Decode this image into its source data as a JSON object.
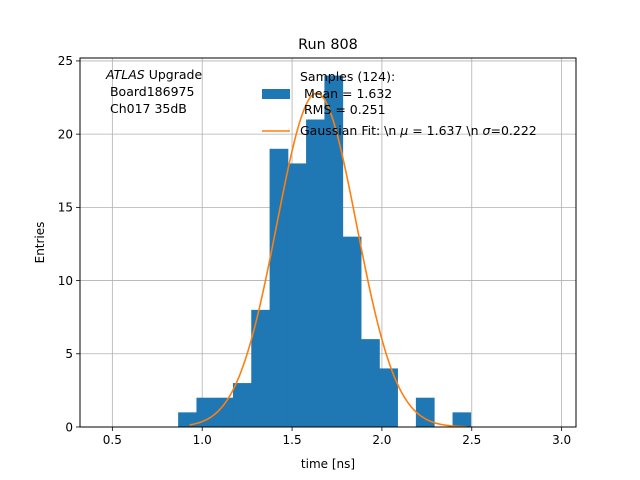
{
  "chart_data": {
    "type": "bar",
    "title": "Run 808",
    "xlabel": "time [ns]",
    "ylabel": "Entries",
    "xlim": [
      0.32,
      3.08
    ],
    "ylim": [
      0,
      25.2
    ],
    "grid": true,
    "xticks": [
      0.5,
      1.0,
      1.5,
      2.0,
      2.5,
      3.0
    ],
    "xtick_labels": [
      "0.5",
      "1.0",
      "1.5",
      "2.0",
      "2.5",
      "3.0"
    ],
    "yticks": [
      0,
      5,
      10,
      15,
      20,
      25
    ],
    "ytick_labels": [
      "0",
      "5",
      "10",
      "15",
      "20",
      "25"
    ],
    "annotation": {
      "experiment": "ATLAS",
      "experiment_suffix": " Upgrade",
      "board": " Board186975",
      "channel": " Ch017 35dB"
    },
    "histogram": {
      "name_lines": [
        "Samples (124):",
        " Mean = 1.632",
        " RMS = 0.251"
      ],
      "color": "#1f77b4",
      "bin_edges": [
        0.866,
        0.968,
        1.07,
        1.171,
        1.273,
        1.375,
        1.477,
        1.578,
        1.68,
        1.782,
        1.884,
        1.986,
        2.087,
        2.189,
        2.291,
        2.393,
        2.494,
        2.596
      ],
      "counts": [
        1,
        2,
        2,
        3,
        8,
        19,
        18,
        21,
        24,
        13,
        6,
        4,
        0,
        2,
        0,
        1,
        0
      ]
    },
    "fit": {
      "name_prefix": "Gaussian Fit: \\n ",
      "mu_symbol": "μ",
      "mu_text": " = 1.637 \\n ",
      "sigma_symbol": "σ",
      "sigma_text": "=0.222",
      "color": "#ff7f0e",
      "mu": 1.637,
      "sigma": 0.222,
      "amplitude": 22.8,
      "x_range": [
        0.93,
        2.47
      ]
    },
    "legend_position": "top-right"
  }
}
